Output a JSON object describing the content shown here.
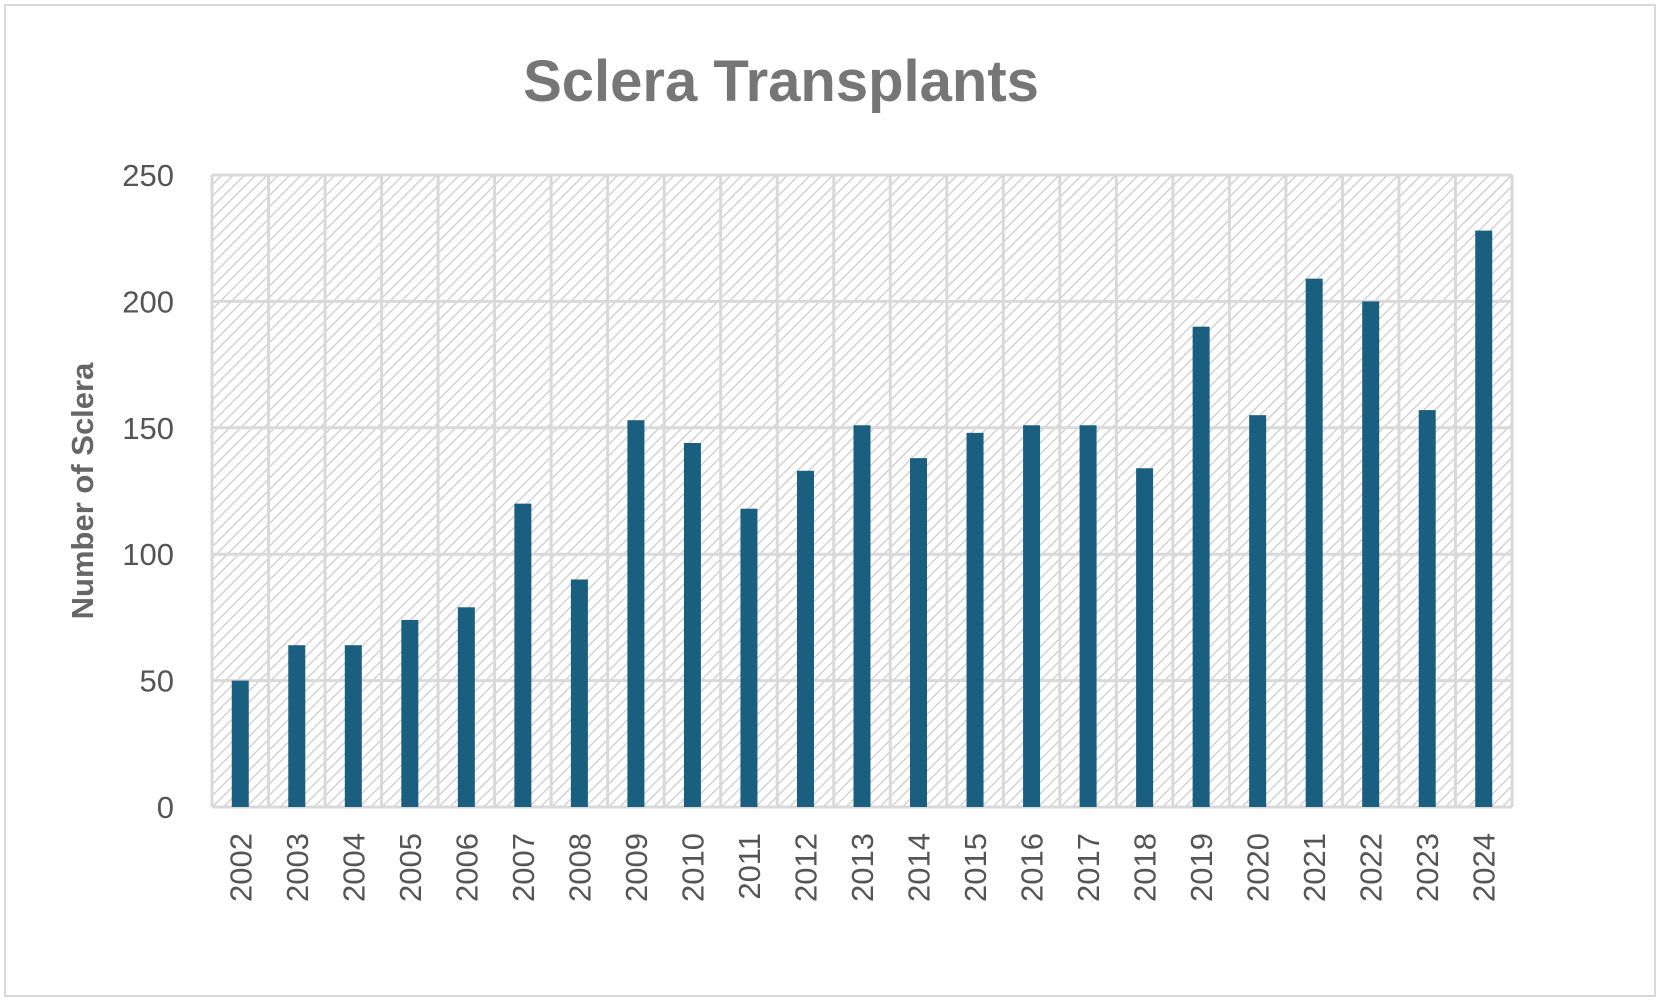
{
  "chart_data": {
    "type": "bar",
    "title": "Sclera Transplants",
    "xlabel": "",
    "ylabel": "Number of Sclera",
    "ylim": [
      0,
      250
    ],
    "yticks": [
      0,
      50,
      100,
      150,
      200,
      250
    ],
    "grid": true,
    "legend": "none",
    "categories": [
      "2002",
      "2003",
      "2004",
      "2005",
      "2006",
      "2007",
      "2008",
      "2009",
      "2010",
      "2011",
      "2012",
      "2013",
      "2014",
      "2015",
      "2016",
      "2017",
      "2018",
      "2019",
      "2020",
      "2021",
      "2022",
      "2023",
      "2024"
    ],
    "values": [
      50,
      64,
      64,
      74,
      79,
      120,
      90,
      153,
      144,
      118,
      133,
      151,
      138,
      148,
      151,
      151,
      134,
      190,
      155,
      209,
      200,
      157,
      228
    ],
    "colors": {
      "bar": "#1a5e80",
      "grid": "#d9d9d9",
      "hatch": "#d3d3d3"
    }
  }
}
